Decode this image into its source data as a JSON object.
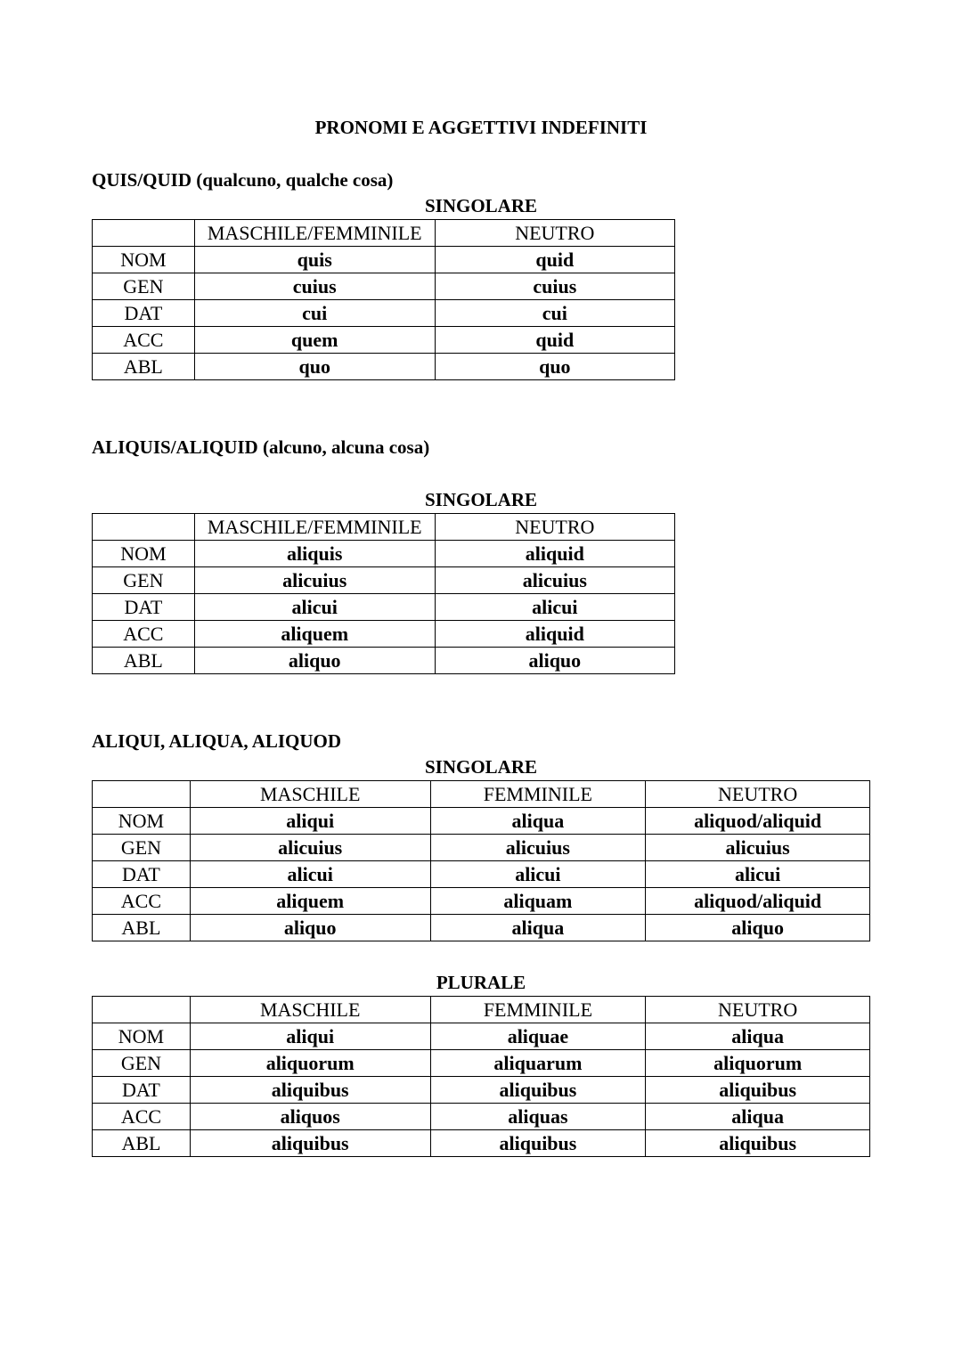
{
  "title": "PRONOMI E AGGETTIVI INDEFINITI",
  "sections": [
    {
      "heading": "QUIS/QUID (qualcuno, qualche cosa)",
      "tables": [
        {
          "caption": "SINGOLARE",
          "headers": [
            "",
            "MASCHILE/FEMMINILE",
            "NEUTRO"
          ],
          "rows": [
            [
              "NOM",
              "quis",
              "quid"
            ],
            [
              "GEN",
              "cuius",
              "cuius"
            ],
            [
              "DAT",
              "cui",
              "cui"
            ],
            [
              "ACC",
              "quem",
              "quid"
            ],
            [
              "ABL",
              "quo",
              "quo"
            ]
          ]
        }
      ]
    },
    {
      "heading": "ALIQUIS/ALIQUID (alcuno, alcuna cosa)",
      "tables": [
        {
          "caption": "SINGOLARE",
          "headers": [
            "",
            "MASCHILE/FEMMINILE",
            "NEUTRO"
          ],
          "rows": [
            [
              "NOM",
              "aliquis",
              "aliquid"
            ],
            [
              "GEN",
              "alicuius",
              "alicuius"
            ],
            [
              "DAT",
              "alicui",
              "alicui"
            ],
            [
              "ACC",
              "aliquem",
              "aliquid"
            ],
            [
              "ABL",
              "aliquo",
              "aliquo"
            ]
          ]
        }
      ]
    },
    {
      "heading": "ALIQUI, ALIQUA, ALIQUOD",
      "tables": [
        {
          "caption": "SINGOLARE",
          "headers": [
            "",
            "MASCHILE",
            "FEMMINILE",
            "NEUTRO"
          ],
          "rows": [
            [
              "NOM",
              "aliqui",
              "aliqua",
              "aliquod/aliquid"
            ],
            [
              "GEN",
              "alicuius",
              "alicuius",
              "alicuius"
            ],
            [
              "DAT",
              "alicui",
              "alicui",
              "alicui"
            ],
            [
              "ACC",
              "aliquem",
              "aliquam",
              "aliquod/aliquid"
            ],
            [
              "ABL",
              "aliquo",
              "aliqua",
              "aliquo"
            ]
          ]
        },
        {
          "caption": "PLURALE",
          "headers": [
            "",
            "MASCHILE",
            "FEMMINILE",
            "NEUTRO"
          ],
          "rows": [
            [
              "NOM",
              "aliqui",
              "aliquae",
              "aliqua"
            ],
            [
              "GEN",
              "aliquorum",
              "aliquarum",
              "aliquorum"
            ],
            [
              "DAT",
              "aliquibus",
              "aliquibus",
              "aliquibus"
            ],
            [
              "ACC",
              "aliquos",
              "aliquas",
              "aliqua"
            ],
            [
              "ABL",
              "aliquibus",
              "aliquibus",
              "aliquibus"
            ]
          ]
        }
      ]
    }
  ]
}
